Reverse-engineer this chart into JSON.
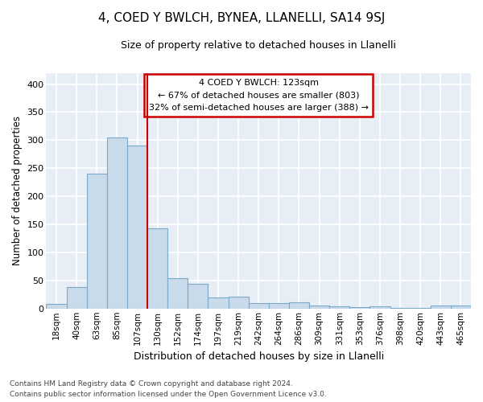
{
  "title": "4, COED Y BWLCH, BYNEA, LLANELLI, SA14 9SJ",
  "subtitle": "Size of property relative to detached houses in Llanelli",
  "xlabel": "Distribution of detached houses by size in Llanelli",
  "ylabel": "Number of detached properties",
  "bar_color": "#c9daea",
  "bar_edge_color": "#7aaac8",
  "bg_color": "#e8eef6",
  "grid_color": "#ffffff",
  "categories": [
    "18sqm",
    "40sqm",
    "63sqm",
    "85sqm",
    "107sqm",
    "130sqm",
    "152sqm",
    "174sqm",
    "197sqm",
    "219sqm",
    "242sqm",
    "264sqm",
    "286sqm",
    "309sqm",
    "331sqm",
    "353sqm",
    "376sqm",
    "398sqm",
    "420sqm",
    "443sqm",
    "465sqm"
  ],
  "values": [
    8,
    38,
    240,
    305,
    290,
    143,
    54,
    44,
    20,
    21,
    9,
    9,
    11,
    5,
    4,
    2,
    4,
    1,
    1,
    5,
    5
  ],
  "vline_x": 4.5,
  "vline_color": "#cc0000",
  "annotation_text_line1": "4 COED Y BWLCH: 123sqm",
  "annotation_text_line2": "← 67% of detached houses are smaller (803)",
  "annotation_text_line3": "32% of semi-detached houses are larger (388) →",
  "annotation_box_color": "white",
  "annotation_box_edge": "#cc0000",
  "ylim": [
    0,
    420
  ],
  "yticks": [
    0,
    50,
    100,
    150,
    200,
    250,
    300,
    350,
    400
  ],
  "footer1": "Contains HM Land Registry data © Crown copyright and database right 2024.",
  "footer2": "Contains public sector information licensed under the Open Government Licence v3.0."
}
